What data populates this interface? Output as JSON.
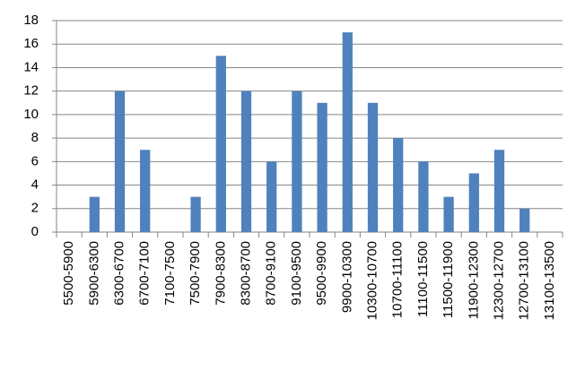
{
  "chart_data": {
    "type": "bar",
    "categories": [
      "5500-5900",
      "5900-6300",
      "6300-6700",
      "6700-7100",
      "7100-7500",
      "7500-7900",
      "7900-8300",
      "8300-8700",
      "8700-9100",
      "9100-9500",
      "9500-9900",
      "9900-10300",
      "10300-10700",
      "10700-11100",
      "11100-11500",
      "11500-11900",
      "11900-12300",
      "12300-12700",
      "12700-13100",
      "13100-13500"
    ],
    "values": [
      0,
      3,
      12,
      7,
      0,
      3,
      15,
      12,
      6,
      12,
      11,
      17,
      11,
      8,
      6,
      3,
      5,
      7,
      2,
      0
    ],
    "color": "#4f81bd",
    "ylim": [
      0,
      18
    ],
    "yticks": [
      0,
      2,
      4,
      6,
      8,
      10,
      12,
      14,
      16,
      18
    ],
    "grid": true
  }
}
